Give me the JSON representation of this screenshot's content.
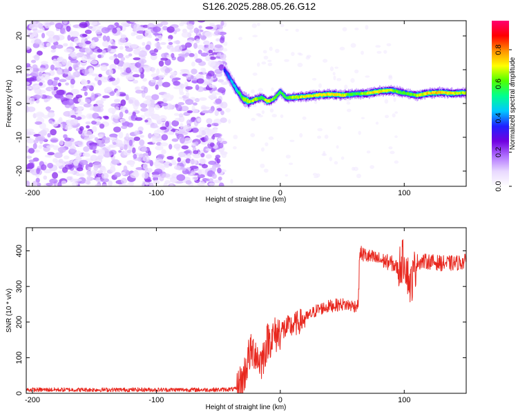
{
  "title": "S126.2025.288.05.26.G12",
  "chart_data": [
    {
      "type": "heatmap",
      "xlabel": "Height of straight line (km)",
      "ylabel": "Frequency (Hz)",
      "xlim": [
        -205,
        150
      ],
      "ylim": [
        -24.5,
        24.5
      ],
      "xticks": [
        -200,
        -100,
        0,
        100
      ],
      "yticks": [
        -20,
        -10,
        0,
        10,
        20
      ],
      "noise_region_x": [
        -205,
        -45
      ],
      "noise_density": 0.55,
      "ridge": {
        "x": [
          -45,
          -40,
          -35,
          -30,
          -25,
          -20,
          -15,
          -10,
          -5,
          0,
          5,
          10,
          20,
          30,
          40,
          50,
          60,
          70,
          80,
          90,
          100,
          110,
          120,
          130,
          140,
          150
        ],
        "freq": [
          10,
          7,
          4,
          1.5,
          0.5,
          1.2,
          1.8,
          0.6,
          1.4,
          3.5,
          1.6,
          1.8,
          2.1,
          2.5,
          2.7,
          2.5,
          2.8,
          3.0,
          3.6,
          3.9,
          3.1,
          2.4,
          3.1,
          3.3,
          3.0,
          3.2
        ],
        "amplitude": [
          0.4,
          0.5,
          0.6,
          0.75,
          0.85,
          0.8,
          0.7,
          0.85,
          0.75,
          0.7,
          0.7,
          0.8,
          0.85,
          0.85,
          0.9,
          0.85,
          0.7,
          0.85,
          0.9,
          0.8,
          0.7,
          0.8,
          0.92,
          0.9,
          0.85,
          0.8
        ]
      },
      "colorbar": {
        "label": "Normalized spectral amplitude",
        "range": [
          0.0,
          0.97
        ],
        "ticks": [
          "0.0",
          "0.2",
          "0.4",
          "0.6",
          "0.8"
        ],
        "tick_values": [
          0.0,
          0.2,
          0.4,
          0.6,
          0.8
        ],
        "colors": [
          "#ffffff",
          "#e8d8ff",
          "#b070ff",
          "#7000e0",
          "#2020ff",
          "#00c8ff",
          "#00ff90",
          "#50ff00",
          "#ffff00",
          "#ff9000",
          "#ff0000",
          "#ff0070"
        ]
      }
    },
    {
      "type": "line",
      "xlabel": "Height of straight line (km)",
      "ylabel": "SNR (10 * v/v)",
      "xlim": [
        -205,
        150
      ],
      "ylim": [
        0,
        465
      ],
      "xticks": [
        -200,
        -100,
        0,
        100
      ],
      "yticks": [
        0,
        100,
        200,
        300,
        400
      ],
      "line_color": "#e8271e",
      "series": [
        {
          "name": "SNR",
          "x": [
            -205,
            -100,
            -50,
            -35,
            -30,
            -25,
            -20,
            -18,
            -15,
            -10,
            -5,
            0,
            10,
            20,
            30,
            40,
            50,
            60,
            63,
            64,
            70,
            80,
            90,
            95,
            100,
            105,
            110,
            120,
            130,
            140,
            150
          ],
          "y": [
            10,
            10,
            10,
            12,
            40,
            110,
            120,
            95,
            90,
            150,
            160,
            175,
            190,
            210,
            235,
            245,
            250,
            245,
            250,
            395,
            385,
            375,
            365,
            350,
            380,
            300,
            370,
            370,
            365,
            365,
            370
          ]
        }
      ]
    }
  ]
}
